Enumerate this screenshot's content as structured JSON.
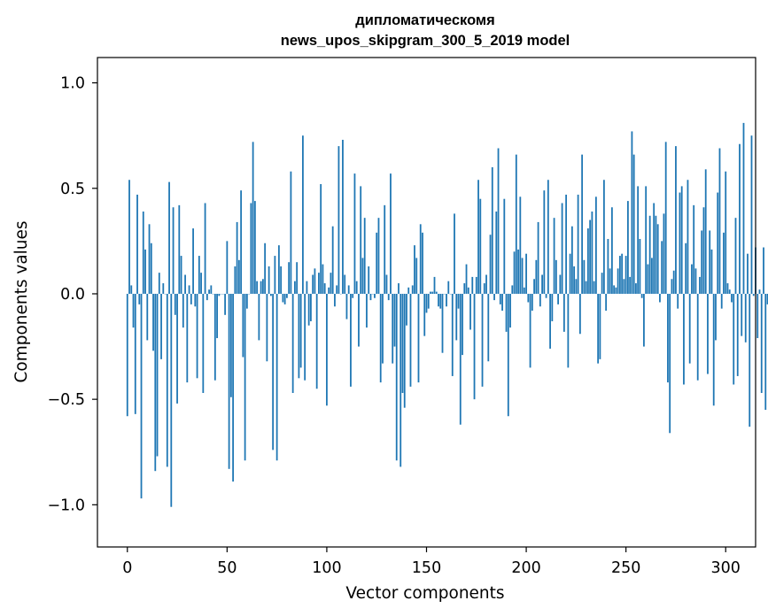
{
  "chart_data": {
    "type": "bar",
    "title_line1": "дипломатическомя",
    "title_line2": "news_upos_skipgram_300_5_2019 model",
    "xlabel": "Vector components",
    "ylabel": "Components values",
    "xlim": [
      -15,
      315
    ],
    "ylim": [
      -1.2,
      1.12
    ],
    "x_ticks": [
      0,
      50,
      100,
      150,
      200,
      250,
      300
    ],
    "x_tick_labels": [
      "0",
      "50",
      "100",
      "150",
      "200",
      "250",
      "300"
    ],
    "y_ticks": [
      1.0,
      0.5,
      0.0,
      -0.5,
      -1.0
    ],
    "y_tick_labels": [
      "1.0",
      "0.5",
      "0.0",
      "−0.5",
      "−1.0"
    ],
    "bar_color": "#1f77b4",
    "grid": false,
    "values": [
      -0.58,
      0.54,
      0.04,
      -0.16,
      -0.57,
      0.47,
      -0.05,
      -0.97,
      0.39,
      0.21,
      -0.22,
      0.33,
      0.24,
      -0.27,
      -0.84,
      -0.77,
      0.1,
      -0.31,
      0.05,
      0.0,
      -0.82,
      0.53,
      -1.01,
      0.41,
      -0.1,
      -0.52,
      0.42,
      0.18,
      -0.16,
      0.09,
      -0.42,
      0.04,
      -0.05,
      0.31,
      -0.06,
      -0.4,
      0.18,
      0.1,
      -0.47,
      0.43,
      -0.03,
      0.02,
      0.04,
      0.0,
      -0.41,
      -0.21,
      -0.01,
      0.0,
      0.0,
      -0.1,
      0.25,
      -0.83,
      -0.49,
      -0.89,
      0.13,
      0.34,
      0.16,
      0.49,
      -0.3,
      -0.79,
      -0.07,
      0.0,
      0.43,
      0.72,
      0.44,
      0.06,
      -0.22,
      0.06,
      0.07,
      0.24,
      -0.32,
      0.13,
      -0.01,
      -0.74,
      0.18,
      -0.79,
      0.23,
      0.13,
      -0.04,
      -0.05,
      -0.02,
      0.15,
      0.58,
      -0.47,
      0.06,
      0.15,
      -0.4,
      -0.35,
      0.75,
      -0.41,
      0.06,
      -0.15,
      -0.13,
      0.09,
      0.12,
      -0.45,
      0.1,
      0.52,
      0.14,
      0.05,
      -0.53,
      0.03,
      0.1,
      0.32,
      -0.06,
      0.04,
      0.7,
      0.0,
      0.73,
      0.09,
      -0.12,
      0.04,
      -0.44,
      -0.02,
      0.57,
      0.06,
      -0.25,
      0.51,
      0.17,
      0.36,
      -0.16,
      0.13,
      -0.03,
      0.0,
      -0.02,
      0.29,
      0.36,
      -0.42,
      -0.33,
      0.42,
      0.09,
      -0.03,
      0.57,
      -0.33,
      -0.25,
      -0.79,
      0.05,
      -0.82,
      -0.47,
      -0.54,
      -0.15,
      0.03,
      -0.44,
      0.04,
      0.23,
      0.17,
      -0.42,
      0.33,
      0.29,
      -0.2,
      -0.09,
      -0.07,
      0.01,
      0.01,
      0.08,
      0.01,
      -0.06,
      -0.07,
      -0.28,
      0.0,
      -0.06,
      0.06,
      0.0,
      -0.39,
      0.38,
      -0.22,
      -0.07,
      -0.62,
      -0.29,
      0.05,
      0.14,
      0.03,
      -0.17,
      0.08,
      -0.5,
      0.08,
      0.54,
      0.45,
      -0.44,
      0.05,
      0.09,
      -0.32,
      0.28,
      0.6,
      -0.03,
      0.39,
      0.69,
      -0.05,
      -0.08,
      0.45,
      -0.18,
      -0.58,
      -0.16,
      0.04,
      0.2,
      0.66,
      0.21,
      0.46,
      0.17,
      0.03,
      0.19,
      -0.04,
      -0.35,
      -0.08,
      0.07,
      0.16,
      0.34,
      -0.06,
      0.09,
      0.49,
      -0.02,
      0.54,
      -0.26,
      -0.13,
      0.36,
      0.16,
      -0.05,
      0.09,
      0.43,
      -0.18,
      0.47,
      -0.35,
      0.19,
      0.32,
      0.13,
      0.07,
      0.47,
      -0.19,
      0.66,
      0.16,
      0.06,
      0.31,
      0.35,
      0.39,
      0.06,
      0.46,
      -0.33,
      -0.31,
      0.1,
      0.54,
      -0.08,
      0.26,
      0.12,
      0.41,
      0.04,
      0.03,
      0.12,
      0.18,
      0.19,
      0.07,
      0.18,
      0.44,
      0.08,
      0.77,
      0.66,
      0.05,
      0.51,
      0.26,
      -0.02,
      -0.25,
      0.51,
      0.14,
      0.37,
      0.17,
      0.43,
      0.37,
      0.33,
      -0.04,
      0.25,
      0.38,
      0.72,
      -0.42,
      -0.66,
      0.07,
      0.11,
      0.7,
      -0.07,
      0.48,
      0.51,
      -0.43,
      0.24,
      0.54,
      -0.33,
      0.14,
      0.42,
      0.12,
      -0.41,
      0.08,
      0.3,
      0.41,
      0.59,
      -0.38,
      0.3,
      0.21,
      -0.53,
      -0.22,
      0.48,
      0.69,
      -0.07,
      0.29,
      0.58,
      0.05,
      0.02,
      -0.04,
      -0.43,
      0.36,
      -0.39,
      0.71,
      -0.2,
      0.81,
      -0.23,
      0.19,
      -0.63,
      0.75,
      -0.01,
      0.22,
      -0.21,
      0.02,
      -0.47,
      0.22,
      -0.55,
      -0.05,
      -0.02
    ]
  }
}
